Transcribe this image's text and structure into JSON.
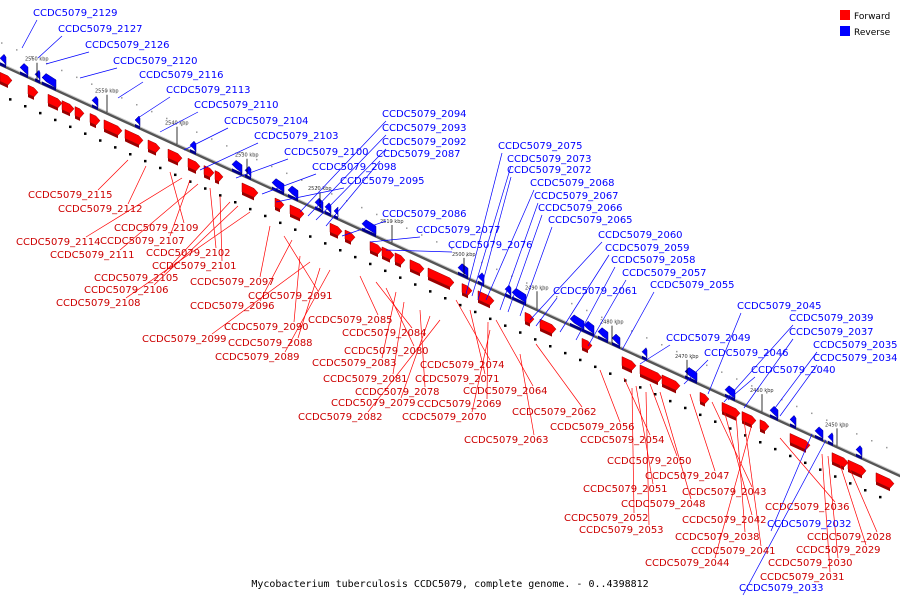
{
  "caption": "Mycobacterium tuberculosis CCDC5079, complete genome. - 0..4398812",
  "legend": [
    {
      "label": "Forward",
      "color": "#ff0000"
    },
    {
      "label": "Reverse",
      "color": "#0000ff"
    }
  ],
  "scale_labels": [
    "2560 kbp",
    "2550 kbp",
    "2540 kbp",
    "2530 kbp",
    "2520 kbp",
    "2510 kbp",
    "2500 kbp",
    "2490 kbp",
    "2480 kbp",
    "2470 kbp",
    "2460 kbp",
    "2450 kbp"
  ],
  "forward_genes": [
    "CCDC5079_2115",
    "CCDC5079_2112",
    "CCDC5079_2109",
    "CCDC5079_2114",
    "CCDC5079_2107",
    "CCDC5079_2111",
    "CCDC5079_2102",
    "CCDC5079_2101",
    "CCDC5079_2105",
    "CCDC5079_2106",
    "CCDC5079_2108",
    "CCDC5079_2097",
    "CCDC5079_2091",
    "CCDC5079_2096",
    "CCDC5079_2090",
    "CCDC5079_2099",
    "CCDC5079_2088",
    "CCDC5079_2089",
    "CCDC5079_2085",
    "CCDC5079_2084",
    "CCDC5079_2080",
    "CCDC5079_2083",
    "CCDC5079_2074",
    "CCDC5079_2081",
    "CCDC5079_2071",
    "CCDC5079_2078",
    "CCDC5079_2064",
    "CCDC5079_2079",
    "CCDC5079_2069",
    "CCDC5079_2082",
    "CCDC5079_2070",
    "CCDC5079_2062",
    "CCDC5079_2056",
    "CCDC5079_2054",
    "CCDC5079_2063",
    "CCDC5079_2050",
    "CCDC5079_2047",
    "CCDC5079_2051",
    "CCDC5079_2043",
    "CCDC5079_2048",
    "CCDC5079_2052",
    "CCDC5079_2042",
    "CCDC5079_2053",
    "CCDC5079_2036",
    "CCDC5079_2038",
    "CCDC5079_2041",
    "CCDC5079_2044",
    "CCDC5079_2028",
    "CCDC5079_2029",
    "CCDC5079_2030",
    "CCDC5079_2031"
  ],
  "reverse_genes": [
    "CCDC5079_2129",
    "CCDC5079_2127",
    "CCDC5079_2126",
    "CCDC5079_2120",
    "CCDC5079_2116",
    "CCDC5079_2113",
    "CCDC5079_2110",
    "CCDC5079_2104",
    "CCDC5079_2103",
    "CCDC5079_2100",
    "CCDC5079_2098",
    "CCDC5079_2095",
    "CCDC5079_2094",
    "CCDC5079_2093",
    "CCDC5079_2092",
    "CCDC5079_2087",
    "CCDC5079_2086",
    "CCDC5079_2077",
    "CCDC5079_2076",
    "CCDC5079_2075",
    "CCDC5079_2073",
    "CCDC5079_2072",
    "CCDC5079_2068",
    "CCDC5079_2067",
    "CCDC5079_2066",
    "CCDC5079_2065",
    "CCDC5079_2060",
    "CCDC5079_2059",
    "CCDC5079_2058",
    "CCDC5079_2057",
    "CCDC5079_2061",
    "CCDC5079_2055",
    "CCDC5079_2049",
    "CCDC5079_2046",
    "CCDC5079_2045",
    "CCDC5079_2039",
    "CCDC5079_2037",
    "CCDC5079_2035",
    "CCDC5079_2034",
    "CCDC5079_2040",
    "CCDC5079_2032",
    "CCDC5079_2033"
  ]
}
